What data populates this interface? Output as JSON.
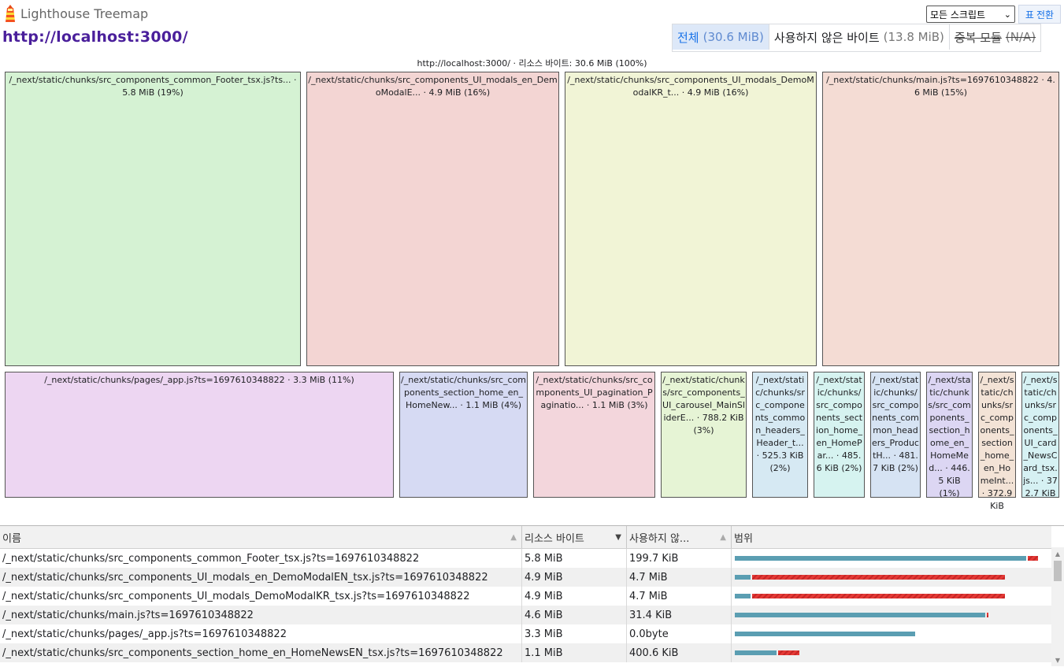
{
  "header": {
    "app_title": "Lighthouse Treemap",
    "url": "http://localhost:3000/",
    "script_select": "모든 스크립트",
    "table_toggle_icon": "표",
    "table_toggle_label": "전환",
    "modes": [
      {
        "label": "전체",
        "sub": "(30.6 MiB)"
      },
      {
        "label": "사용하지 않은 바이트",
        "sub": "(13.8 MiB)"
      },
      {
        "label": "중복 모듈",
        "sub": "(N/A)"
      }
    ]
  },
  "treemap": {
    "root_label": "http://localhost:3000/ · 리소스 바이트: 30.6 MiB (100%)",
    "tiles": [
      {
        "label": "/_next/static/chunks/src_components_common_Footer_tsx.js?ts... · 5.8 MiB (19%)",
        "color": "#d5f2d3"
      },
      {
        "label": "/_next/static/chunks/src_components_UI_modals_en_DemoModalE... · 4.9 MiB (16%)",
        "color": "#f3d5d3"
      },
      {
        "label": "/_next/static/chunks/src_components_UI_modals_DemoModalKR_t... · 4.9 MiB (16%)",
        "color": "#f1f4d6"
      },
      {
        "label": "/_next/static/chunks/main.js?ts=1697610348822 · 4.6 MiB (15%)",
        "color": "#f4dcd4"
      },
      {
        "label": "/_next/static/chunks/pages/_app.js?ts=1697610348822 · 3.3 MiB (11%)",
        "color": "#edd6f2"
      },
      {
        "label": "/_next/static/chunks/src_components_section_home_en_HomeNew... · 1.1 MiB (4%)",
        "color": "#d6daf3"
      },
      {
        "label": "/_next/static/chunks/src_components_UI_pagination_Paginatio... · 1.1 MiB (3%)",
        "color": "#f3d6dc"
      },
      {
        "label": "/_next/static/chunks/src_components_UI_carousel_MainSliderE... · 788.2 KiB (3%)",
        "color": "#e6f4d5"
      },
      {
        "label": "/_next/static/chunks/src_components_common_headers_Header_t... · 525.3 KiB (2%)",
        "color": "#d6e9f3"
      },
      {
        "label": "/_next/static/chunks/src_components_section_home_en_HomePar... · 485.6 KiB (2%)",
        "color": "#d6f3f0"
      },
      {
        "label": "/_next/static/chunks/src_components_common_headers_ProductH... · 481.7 KiB (2%)",
        "color": "#d6e3f3"
      },
      {
        "label": "/_next/static/chunks/src_components_section_home_en_HomeMed... · 446.5 KiB (1%)",
        "color": "#dcd6f3"
      },
      {
        "label": "/_next/static/chunks/src_components_section_home_en_HomeInt... · 372.9 KiB",
        "color": "#f3e3d6"
      },
      {
        "label": "/_next/static/chunks/src_components_UI_card_NewsCard_tsx.js... · 372.7 KiB",
        "color": "#d6f1f3"
      }
    ]
  },
  "table": {
    "columns": [
      "이름",
      "리소스 바이트",
      "사용하지 않...",
      "범위"
    ],
    "rows": [
      {
        "name": "/_next/static/chunks/src_components_common_Footer_tsx.js?ts=1697610348822",
        "bytes": "5.8 MiB",
        "unused": "199.7 KiB",
        "total_pct": 96.3,
        "unused_pct": 3.3
      },
      {
        "name": "/_next/static/chunks/src_components_UI_modals_en_DemoModalEN_tsx.js?ts=1697610348822",
        "bytes": "4.9 MiB",
        "unused": "4.7 MiB",
        "total_pct": 85.8,
        "unused_pct": 80.9
      },
      {
        "name": "/_next/static/chunks/src_components_UI_modals_DemoModalKR_tsx.js?ts=1697610348822",
        "bytes": "4.9 MiB",
        "unused": "4.7 MiB",
        "total_pct": 85.8,
        "unused_pct": 80.9
      },
      {
        "name": "/_next/static/chunks/main.js?ts=1697610348822",
        "bytes": "4.6 MiB",
        "unused": "31.4 KiB",
        "total_pct": 80.4,
        "unused_pct": 0.6
      },
      {
        "name": "/_next/static/chunks/pages/_app.js?ts=1697610348822",
        "bytes": "3.3 MiB",
        "unused": "0.0byte",
        "total_pct": 57.5,
        "unused_pct": 0
      },
      {
        "name": "/_next/static/chunks/src_components_section_home_en_HomeNewsEN_tsx.js?ts=1697610348822",
        "bytes": "1.1 MiB",
        "unused": "400.6 KiB",
        "total_pct": 20.1,
        "unused_pct": 6.9
      }
    ]
  },
  "colors": {
    "accent": "#1a73e8",
    "url": "#4a1f9b",
    "used_bar": "#5b9eb2",
    "unused_bar": "#e53935"
  }
}
